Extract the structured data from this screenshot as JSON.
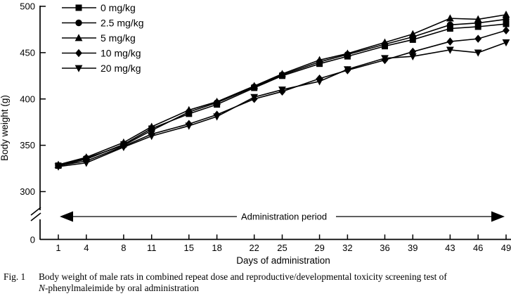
{
  "figure": {
    "label": "Fig. 1",
    "caption_line1": "Body weight of male rats in combined repeat dose and reproductive/developmental toxicity screening test of",
    "caption_italic": "N",
    "caption_line2_rest": "-phenylmaleimide by oral administration"
  },
  "chart_data": {
    "type": "line",
    "title": "",
    "xlabel": "Days of administration",
    "ylabel": "Body weight (g)",
    "x": [
      1,
      4,
      8,
      11,
      15,
      18,
      22,
      25,
      29,
      32,
      36,
      39,
      43,
      46,
      49
    ],
    "x_tick_labels": [
      "1",
      "4",
      "8",
      "11",
      "15",
      "18",
      "22",
      "25",
      "29",
      "32",
      "36",
      "39",
      "43",
      "46",
      "49"
    ],
    "xlim": [
      1,
      49
    ],
    "ylim": [
      300,
      500
    ],
    "y_ticks": [
      300,
      350,
      400,
      450,
      500
    ],
    "y_origin_label": "0",
    "y_axis_break": true,
    "grid": false,
    "legend_position": "top-left",
    "annotation": "Administration period",
    "line_color": "#000000",
    "series": [
      {
        "name": "0 mg/kg",
        "marker": "square",
        "color": "#000000",
        "values": [
          328,
          335,
          351,
          368,
          384,
          394,
          412,
          425,
          438,
          446,
          457,
          464,
          476,
          478,
          481
        ]
      },
      {
        "name": "2.5 mg/kg",
        "marker": "circle",
        "color": "#000000",
        "values": [
          328,
          336,
          350,
          366,
          386,
          396,
          413,
          426,
          440,
          448,
          459,
          467,
          480,
          482,
          486
        ]
      },
      {
        "name": "5 mg/kg",
        "marker": "triangle-up",
        "color": "#000000",
        "values": [
          329,
          337,
          353,
          370,
          388,
          397,
          414,
          427,
          442,
          449,
          461,
          470,
          487,
          486,
          491
        ]
      },
      {
        "name": "10 mg/kg",
        "marker": "diamond",
        "color": "#000000",
        "values": [
          328,
          333,
          349,
          362,
          373,
          383,
          400,
          408,
          422,
          431,
          442,
          451,
          462,
          465,
          474
        ]
      },
      {
        "name": "20 mg/kg",
        "marker": "triangle-down",
        "color": "#000000",
        "values": [
          327,
          331,
          348,
          360,
          371,
          381,
          402,
          410,
          419,
          432,
          444,
          446,
          453,
          450,
          461
        ]
      }
    ]
  }
}
